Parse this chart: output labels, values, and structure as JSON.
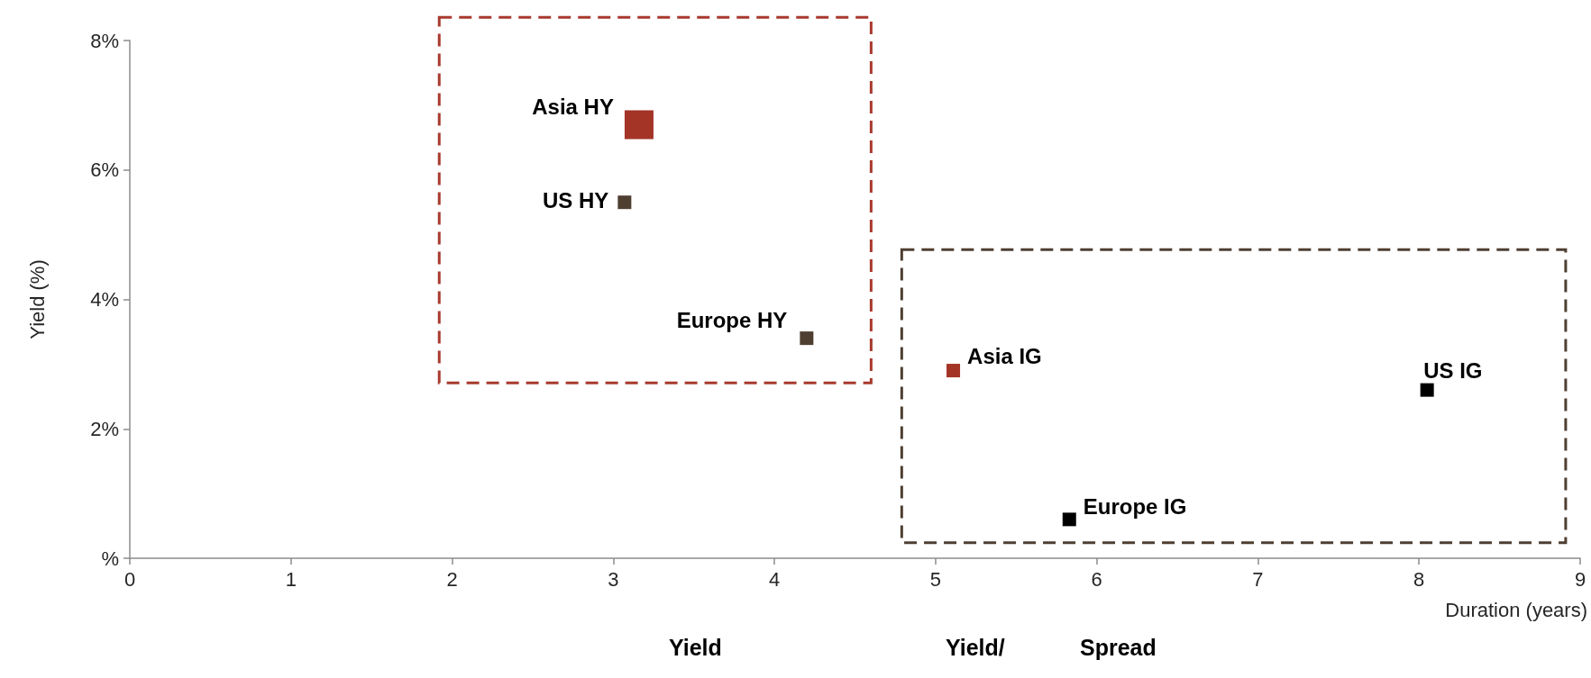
{
  "chart_data": {
    "type": "bubble",
    "ylabel": "Yield (%)",
    "xlabel": "Duration (years)",
    "annotations": [
      "Yield",
      "Yield/",
      "Spread"
    ],
    "series": [
      {
        "name": "Asia HY",
        "color": "#a33426",
        "x": [
          3.16
        ],
        "values": [
          6.7
        ],
        "sizes": [
          1
        ]
      },
      {
        "name": "US HY",
        "color": "#4f3f31",
        "x": [
          3.07
        ],
        "values": [
          5.5
        ],
        "sizes": [
          0.22
        ]
      },
      {
        "name": "Europe HY",
        "color": "#4f3f31",
        "x": [
          4.2
        ],
        "values": [
          3.4
        ],
        "sizes": [
          0.22
        ]
      },
      {
        "name": "Asia IG",
        "color": "#a33426",
        "x": [
          5.11
        ],
        "values": [
          2.9
        ],
        "sizes": [
          0.22
        ]
      },
      {
        "name": "US IG",
        "color": "#000000",
        "x": [
          8.05
        ],
        "values": [
          2.6
        ],
        "sizes": [
          0.22
        ]
      },
      {
        "name": "Europe IG",
        "color": "#000000",
        "x": [
          5.83
        ],
        "values": [
          0.6
        ],
        "sizes": [
          0.22
        ]
      }
    ],
    "xlim": [
      0,
      9
    ],
    "xticks": [
      0,
      1,
      2,
      3,
      4,
      5,
      6,
      7,
      8,
      9
    ],
    "ylim": [
      0,
      8
    ],
    "yticks": [
      {
        "value": 0,
        "label": "%"
      },
      {
        "value": 2,
        "label": "2%"
      },
      {
        "value": 4,
        "label": "4%"
      },
      {
        "value": 6,
        "label": "6%"
      },
      {
        "value": 8,
        "label": "8%"
      }
    ],
    "grid": false,
    "legend": false,
    "marker": "square"
  }
}
